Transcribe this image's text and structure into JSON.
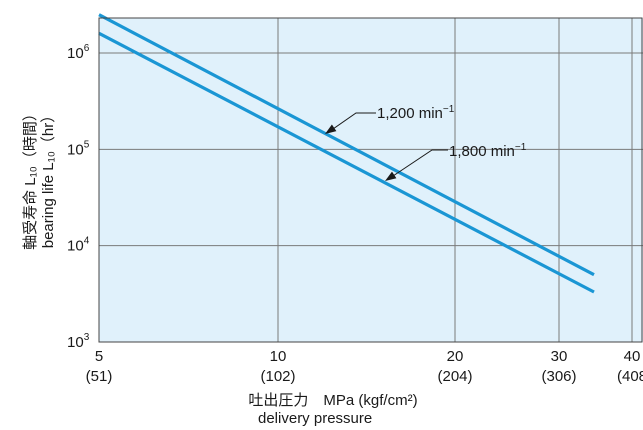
{
  "chart_data": {
    "type": "line",
    "x_scale": "log",
    "y_scale": "log",
    "xlim": [
      5,
      35
    ],
    "ylim": [
      1000,
      2700000
    ],
    "grid": true,
    "background_color": "#e0f1fb",
    "grid_color": "#7a7a7a",
    "line_color": "#1a96d4",
    "x_ticks": [
      {
        "value": 5,
        "label": "5",
        "sublabel": "(51)"
      },
      {
        "value": 10,
        "label": "10",
        "sublabel": "(102)"
      },
      {
        "value": 20,
        "label": "20",
        "sublabel": "(204)"
      },
      {
        "value": 30,
        "label": "30",
        "sublabel": "(306)"
      },
      {
        "value": 40,
        "label": "40",
        "sublabel": "(408"
      }
    ],
    "y_ticks": [
      {
        "value": 1000,
        "base": "10",
        "exp": "3"
      },
      {
        "value": 10000,
        "base": "10",
        "exp": "4"
      },
      {
        "value": 100000,
        "base": "10",
        "exp": "5"
      },
      {
        "value": 1000000,
        "base": "10",
        "exp": "6"
      }
    ],
    "xlabel_line1": "吐出圧力　MPa (kgf/cm²)",
    "xlabel_line2": "delivery pressure",
    "ylabel_line1": "軸受寿命 L₁₀（時間）",
    "ylabel_line2": "bearing life L₁₀（hr）",
    "series": [
      {
        "name": "1,200 min⁻¹",
        "label_main": "1,200 min",
        "label_sup": "−1",
        "points": [
          [
            5,
            2500000
          ],
          [
            34,
            5000
          ]
        ]
      },
      {
        "name": "1,800 min⁻¹",
        "label_main": "1,800 min",
        "label_sup": "−1",
        "points": [
          [
            5,
            1600000
          ],
          [
            34,
            3300
          ]
        ]
      }
    ]
  }
}
